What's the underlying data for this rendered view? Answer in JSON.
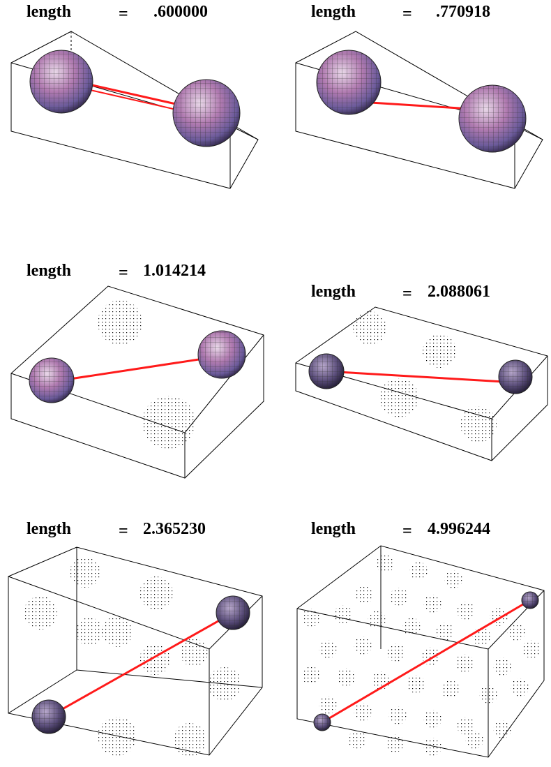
{
  "colors": {
    "bond": "#ff1a1a",
    "frame": "#000000",
    "sphere_mid": "#b07ab0",
    "sphere_dark": "#4a3d66"
  },
  "panels": [
    {
      "word": "length",
      "eq": "=",
      "value": ".600000"
    },
    {
      "word": "length",
      "eq": "=",
      "value": ".770918"
    },
    {
      "word": "length",
      "eq": "=",
      "value": "1.014214"
    },
    {
      "word": "length",
      "eq": "=",
      "value": "2.088061"
    },
    {
      "word": "length",
      "eq": "=",
      "value": "2.365230"
    },
    {
      "word": "length",
      "eq": "=",
      "value": "4.996244"
    }
  ]
}
